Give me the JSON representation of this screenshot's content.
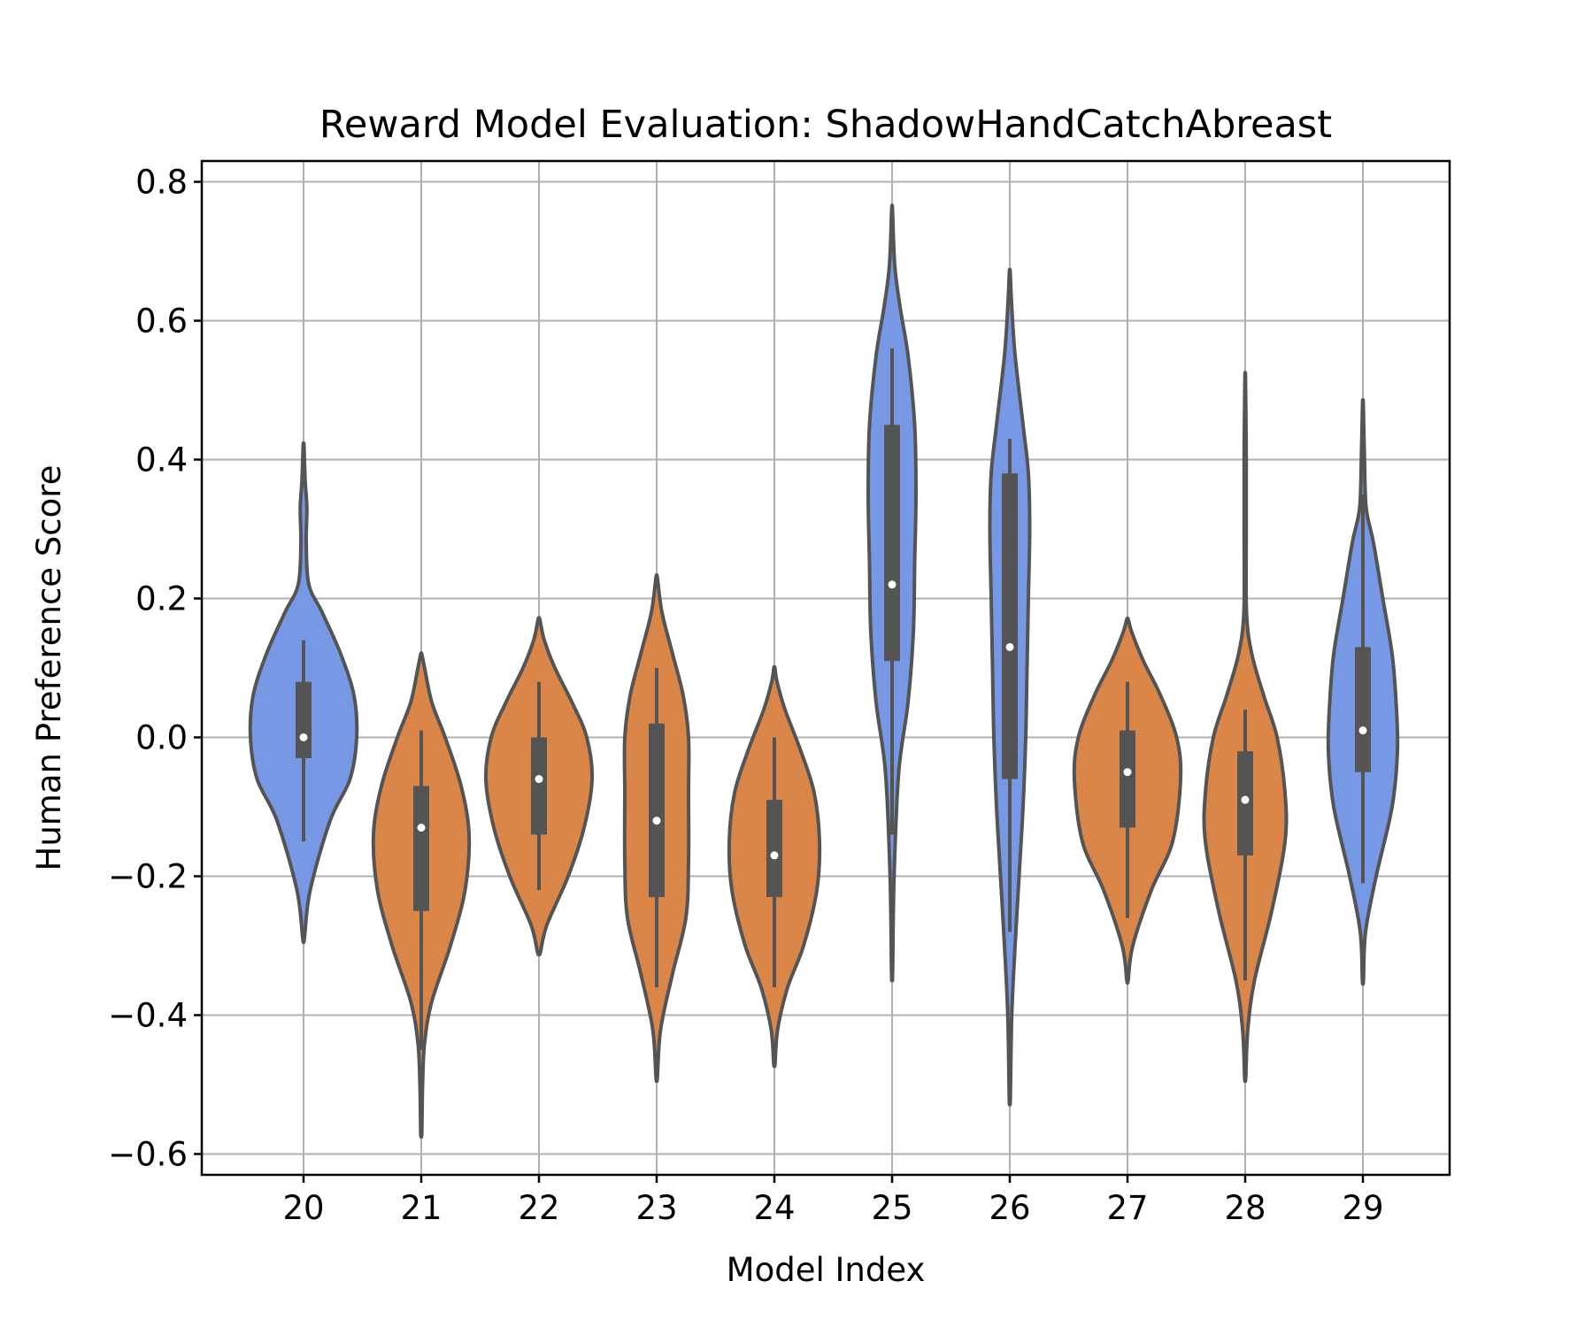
{
  "chart_data": {
    "type": "violin",
    "title": "Reward Model Evaluation: ShadowHandCatchAbreast",
    "xlabel": "Model Index",
    "ylabel": "Human Preference Score",
    "categories": [
      "20",
      "21",
      "22",
      "23",
      "24",
      "25",
      "26",
      "27",
      "28",
      "29"
    ],
    "ylim": [
      -0.63,
      0.83
    ],
    "yticks": [
      0.8,
      0.6,
      0.4,
      0.2,
      0.0,
      -0.2,
      -0.4,
      -0.6
    ],
    "ytick_labels": [
      "0.8",
      "0.6",
      "0.4",
      "0.2",
      "0.0",
      "−0.2",
      "−0.4",
      "−0.6"
    ],
    "grid": true,
    "colors": {
      "high": "#7799e5",
      "low": "#d98648"
    },
    "violins": [
      {
        "category": "20",
        "color": "high",
        "min": -0.29,
        "max": 0.42,
        "q1": -0.03,
        "median": 0.0,
        "q3": 0.08,
        "whisker_low": -0.15,
        "whisker_high": 0.14,
        "density": [
          [
            -0.29,
            0.006
          ],
          [
            -0.22,
            0.05
          ],
          [
            -0.12,
            0.2
          ],
          [
            -0.06,
            0.35
          ],
          [
            0.0,
            0.4
          ],
          [
            0.06,
            0.38
          ],
          [
            0.12,
            0.28
          ],
          [
            0.18,
            0.14
          ],
          [
            0.22,
            0.04
          ],
          [
            0.28,
            0.02
          ],
          [
            0.33,
            0.025
          ],
          [
            0.37,
            0.012
          ],
          [
            0.42,
            0.003
          ]
        ]
      },
      {
        "category": "21",
        "color": "low",
        "min": -0.57,
        "max": 0.12,
        "q1": -0.25,
        "median": -0.13,
        "q3": -0.07,
        "whisker_low": -0.45,
        "whisker_high": 0.01,
        "density": [
          [
            -0.57,
            0.004
          ],
          [
            -0.5,
            0.01
          ],
          [
            -0.44,
            0.025
          ],
          [
            -0.38,
            0.08
          ],
          [
            -0.3,
            0.22
          ],
          [
            -0.22,
            0.33
          ],
          [
            -0.14,
            0.36
          ],
          [
            -0.07,
            0.3
          ],
          [
            0.0,
            0.18
          ],
          [
            0.05,
            0.08
          ],
          [
            0.1,
            0.025
          ],
          [
            0.12,
            0.004
          ]
        ]
      },
      {
        "category": "22",
        "color": "low",
        "min": -0.31,
        "max": 0.17,
        "q1": -0.14,
        "median": -0.06,
        "q3": 0.0,
        "whisker_low": -0.22,
        "whisker_high": 0.08,
        "density": [
          [
            -0.31,
            0.01
          ],
          [
            -0.27,
            0.06
          ],
          [
            -0.2,
            0.22
          ],
          [
            -0.13,
            0.34
          ],
          [
            -0.06,
            0.4
          ],
          [
            0.0,
            0.36
          ],
          [
            0.05,
            0.25
          ],
          [
            0.1,
            0.12
          ],
          [
            0.14,
            0.04
          ],
          [
            0.17,
            0.006
          ]
        ]
      },
      {
        "category": "23",
        "color": "low",
        "min": -0.49,
        "max": 0.23,
        "q1": -0.23,
        "median": -0.12,
        "q3": 0.02,
        "whisker_low": -0.36,
        "whisker_high": 0.1,
        "density": [
          [
            -0.49,
            0.005
          ],
          [
            -0.42,
            0.03
          ],
          [
            -0.34,
            0.12
          ],
          [
            -0.26,
            0.22
          ],
          [
            -0.18,
            0.24
          ],
          [
            -0.08,
            0.24
          ],
          [
            0.0,
            0.24
          ],
          [
            0.06,
            0.2
          ],
          [
            0.12,
            0.12
          ],
          [
            0.18,
            0.04
          ],
          [
            0.23,
            0.005
          ]
        ]
      },
      {
        "category": "24",
        "color": "low",
        "min": -0.47,
        "max": 0.1,
        "q1": -0.23,
        "median": -0.17,
        "q3": -0.09,
        "whisker_low": -0.36,
        "whisker_high": 0.0,
        "density": [
          [
            -0.47,
            0.005
          ],
          [
            -0.42,
            0.025
          ],
          [
            -0.36,
            0.1
          ],
          [
            -0.3,
            0.22
          ],
          [
            -0.22,
            0.32
          ],
          [
            -0.15,
            0.34
          ],
          [
            -0.08,
            0.3
          ],
          [
            -0.02,
            0.2
          ],
          [
            0.04,
            0.08
          ],
          [
            0.08,
            0.02
          ],
          [
            0.1,
            0.004
          ]
        ]
      },
      {
        "category": "25",
        "color": "high",
        "min": -0.34,
        "max": 0.76,
        "q1": 0.11,
        "median": 0.22,
        "q3": 0.45,
        "whisker_low": -0.14,
        "whisker_high": 0.56,
        "density": [
          [
            -0.34,
            0.004
          ],
          [
            -0.2,
            0.015
          ],
          [
            -0.05,
            0.05
          ],
          [
            0.05,
            0.12
          ],
          [
            0.15,
            0.16
          ],
          [
            0.25,
            0.17
          ],
          [
            0.35,
            0.18
          ],
          [
            0.45,
            0.17
          ],
          [
            0.55,
            0.12
          ],
          [
            0.62,
            0.06
          ],
          [
            0.68,
            0.02
          ],
          [
            0.76,
            0.003
          ]
        ]
      },
      {
        "category": "26",
        "color": "high",
        "min": -0.52,
        "max": 0.67,
        "q1": -0.06,
        "median": 0.13,
        "q3": 0.38,
        "whisker_low": -0.28,
        "whisker_high": 0.43,
        "density": [
          [
            -0.52,
            0.004
          ],
          [
            -0.4,
            0.015
          ],
          [
            -0.3,
            0.04
          ],
          [
            -0.2,
            0.07
          ],
          [
            -0.1,
            0.1
          ],
          [
            0.0,
            0.12
          ],
          [
            0.1,
            0.13
          ],
          [
            0.2,
            0.14
          ],
          [
            0.3,
            0.15
          ],
          [
            0.38,
            0.14
          ],
          [
            0.45,
            0.1
          ],
          [
            0.55,
            0.04
          ],
          [
            0.62,
            0.015
          ],
          [
            0.67,
            0.003
          ]
        ]
      },
      {
        "category": "27",
        "color": "low",
        "min": -0.35,
        "max": 0.17,
        "q1": -0.13,
        "median": -0.05,
        "q3": 0.01,
        "whisker_low": -0.26,
        "whisker_high": 0.08,
        "density": [
          [
            -0.35,
            0.005
          ],
          [
            -0.3,
            0.04
          ],
          [
            -0.22,
            0.18
          ],
          [
            -0.15,
            0.34
          ],
          [
            -0.06,
            0.4
          ],
          [
            0.0,
            0.37
          ],
          [
            0.06,
            0.25
          ],
          [
            0.11,
            0.12
          ],
          [
            0.15,
            0.035
          ],
          [
            0.17,
            0.005
          ]
        ]
      },
      {
        "category": "28",
        "color": "low",
        "min": -0.49,
        "max": 0.52,
        "q1": -0.17,
        "median": -0.09,
        "q3": -0.02,
        "whisker_low": -0.35,
        "whisker_high": 0.04,
        "density": [
          [
            -0.49,
            0.004
          ],
          [
            -0.42,
            0.02
          ],
          [
            -0.35,
            0.07
          ],
          [
            -0.25,
            0.2
          ],
          [
            -0.15,
            0.3
          ],
          [
            -0.08,
            0.3
          ],
          [
            0.0,
            0.24
          ],
          [
            0.06,
            0.14
          ],
          [
            0.12,
            0.05
          ],
          [
            0.18,
            0.01
          ],
          [
            0.3,
            0.008
          ],
          [
            0.4,
            0.008
          ],
          [
            0.45,
            0.006
          ],
          [
            0.52,
            0.002
          ]
        ]
      },
      {
        "category": "29",
        "color": "high",
        "min": -0.35,
        "max": 0.48,
        "q1": -0.05,
        "median": 0.01,
        "q3": 0.13,
        "whisker_low": -0.21,
        "whisker_high": 0.35,
        "density": [
          [
            -0.35,
            0.004
          ],
          [
            -0.28,
            0.02
          ],
          [
            -0.2,
            0.1
          ],
          [
            -0.1,
            0.22
          ],
          [
            -0.02,
            0.26
          ],
          [
            0.05,
            0.25
          ],
          [
            0.12,
            0.22
          ],
          [
            0.2,
            0.15
          ],
          [
            0.28,
            0.08
          ],
          [
            0.33,
            0.025
          ],
          [
            0.4,
            0.012
          ],
          [
            0.48,
            0.003
          ]
        ]
      }
    ]
  }
}
